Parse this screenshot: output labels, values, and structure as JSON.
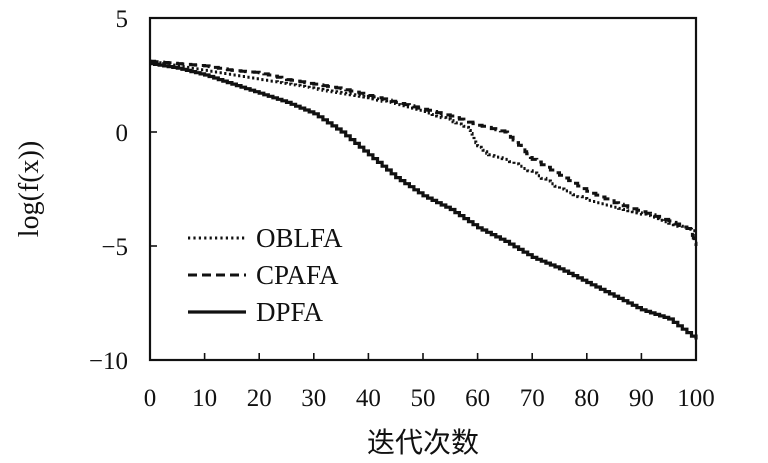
{
  "chart_data": {
    "type": "line",
    "xlabel": "迭代次数",
    "ylabel": "log(f(x))",
    "xlim": [
      0,
      100
    ],
    "ylim": [
      -10,
      5
    ],
    "xticks": [
      0,
      10,
      20,
      30,
      40,
      50,
      60,
      70,
      80,
      90,
      100
    ],
    "yticks": [
      5,
      0,
      -5,
      -10
    ],
    "ytick_labels": [
      "5",
      "0",
      "−5",
      "−10"
    ],
    "grid": false,
    "legend_position": "bottom-left",
    "series": [
      {
        "name": "OBLFA",
        "style": "dotted",
        "step": true,
        "x": [
          0,
          5,
          10,
          15,
          20,
          25,
          30,
          35,
          40,
          45,
          50,
          55,
          58,
          60,
          62,
          65,
          70,
          75,
          80,
          85,
          90,
          95,
          100
        ],
        "y": [
          3.1,
          2.9,
          2.7,
          2.5,
          2.3,
          2.1,
          1.9,
          1.7,
          1.5,
          1.2,
          0.9,
          0.5,
          0.2,
          -0.6,
          -1.0,
          -1.2,
          -1.8,
          -2.5,
          -3.0,
          -3.3,
          -3.6,
          -4.0,
          -4.4
        ]
      },
      {
        "name": "CPAFA",
        "style": "dashed",
        "step": true,
        "x": [
          0,
          5,
          10,
          15,
          20,
          25,
          30,
          35,
          40,
          45,
          50,
          55,
          60,
          65,
          68,
          70,
          75,
          80,
          85,
          90,
          95,
          99,
          100
        ],
        "y": [
          3.1,
          3.0,
          2.9,
          2.7,
          2.6,
          2.3,
          2.1,
          1.9,
          1.6,
          1.3,
          1.0,
          0.7,
          0.3,
          0.0,
          -0.7,
          -1.2,
          -1.9,
          -2.6,
          -3.1,
          -3.5,
          -3.9,
          -4.3,
          -5.0
        ]
      },
      {
        "name": "DPFA",
        "style": "solid",
        "step": true,
        "x": [
          0,
          5,
          10,
          15,
          20,
          25,
          30,
          35,
          40,
          45,
          50,
          55,
          60,
          65,
          70,
          75,
          80,
          85,
          90,
          95,
          100
        ],
        "y": [
          3.0,
          2.8,
          2.5,
          2.1,
          1.7,
          1.3,
          0.8,
          0.0,
          -1.0,
          -2.0,
          -2.8,
          -3.4,
          -4.2,
          -4.8,
          -5.5,
          -6.0,
          -6.6,
          -7.2,
          -7.8,
          -8.2,
          -9.1
        ]
      }
    ]
  }
}
